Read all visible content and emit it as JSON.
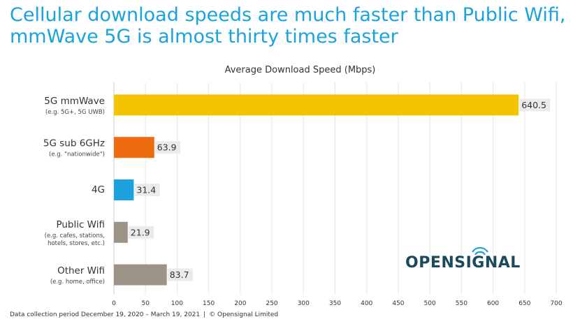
{
  "headline": {
    "line1": "Cellular download speeds are much faster than Public Wifi,",
    "line2": "mmWave 5G is almost thirty times faster"
  },
  "footer": {
    "period": "Data collection period December 19, 2020 – March 19, 2021",
    "separator": "|",
    "credit": "© Opensignal Limited"
  },
  "logo": {
    "text": "OPENSIGNAL",
    "icon": "signal-wave-icon",
    "color": "#1a4a5c"
  },
  "chart_data": {
    "type": "bar",
    "orientation": "horizontal",
    "title": "Average Download Speed (Mbps)",
    "xlim": [
      0,
      700
    ],
    "xticks": [
      0,
      50,
      100,
      150,
      200,
      250,
      300,
      350,
      400,
      450,
      500,
      550,
      600,
      650,
      700
    ],
    "grid": "vertical",
    "categories": [
      {
        "label": "5G mmWave",
        "sublabel": [
          "(e.g. 5G+, 5G UWB)"
        ],
        "value": 640.5,
        "label_text": "640.5",
        "color": "#f5c400"
      },
      {
        "label": "5G sub 6GHz",
        "sublabel": [
          "(e.g. \"nationwide\")"
        ],
        "value": 63.9,
        "label_text": "63.9",
        "color": "#ee6b0f"
      },
      {
        "label": "4G",
        "sublabel": [],
        "value": 31.4,
        "label_text": "31.4",
        "color": "#1aa3dc"
      },
      {
        "label": "Public Wifi",
        "sublabel": [
          "(e.g. cafes, stations,",
          "hotels, stores, etc.)"
        ],
        "value": 21.9,
        "label_text": "21.9",
        "color": "#9d9488"
      },
      {
        "label": "Other Wifi",
        "sublabel": [
          "(e.g. home, office)"
        ],
        "value": 83.7,
        "label_text": "83.7",
        "color": "#9d9488"
      }
    ]
  }
}
